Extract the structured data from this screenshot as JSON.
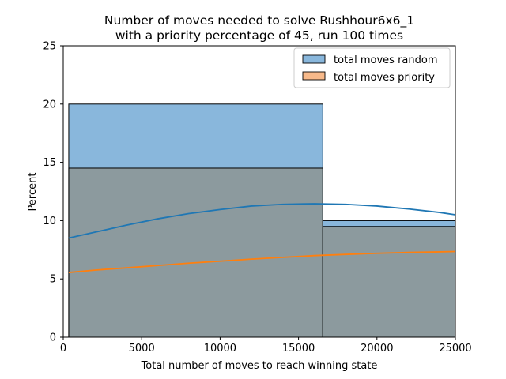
{
  "chart_data": {
    "type": "histogram",
    "title_lines": [
      "Number of moves needed to solve Rushhour6x6_1",
      "with a priority percentage of 45, run 100 times"
    ],
    "xlabel": "Total number of moves to reach winning state",
    "ylabel": "Percent",
    "xlim": [
      0,
      25000
    ],
    "ylim": [
      0,
      25
    ],
    "xticks": [
      0,
      5000,
      10000,
      15000,
      20000,
      25000
    ],
    "yticks": [
      0,
      5,
      10,
      15,
      20,
      25
    ],
    "grid": false,
    "legend_position": "top-right",
    "bins": [
      {
        "x0": 350,
        "x1": 16550
      },
      {
        "x0": 16550,
        "x1": 32750
      }
    ],
    "series": [
      {
        "name": "total moves random",
        "color": "#1f77b4",
        "bar_fill": "#89b7dc",
        "values": [
          20.0,
          10.0
        ],
        "kde": {
          "x": [
            350,
            2000,
            4000,
            6000,
            8000,
            10000,
            12000,
            14000,
            16000,
            18000,
            20000,
            22000,
            24000,
            25000
          ],
          "y": [
            8.5,
            9.0,
            9.6,
            10.15,
            10.6,
            10.95,
            11.25,
            11.4,
            11.45,
            11.4,
            11.25,
            11.0,
            10.7,
            10.5
          ]
        }
      },
      {
        "name": "total moves priority",
        "color": "#ff7f0e",
        "bar_fill": "#f7b98a",
        "values": [
          14.5,
          9.5
        ],
        "kde": {
          "x": [
            350,
            2000,
            4000,
            6000,
            8000,
            10000,
            12000,
            14000,
            16000,
            18000,
            20000,
            22000,
            24000,
            25000
          ],
          "y": [
            5.55,
            5.75,
            5.95,
            6.15,
            6.35,
            6.52,
            6.7,
            6.85,
            7.0,
            7.1,
            7.2,
            7.27,
            7.32,
            7.35
          ]
        }
      }
    ],
    "overlap_fill": "#8c9a9e"
  }
}
